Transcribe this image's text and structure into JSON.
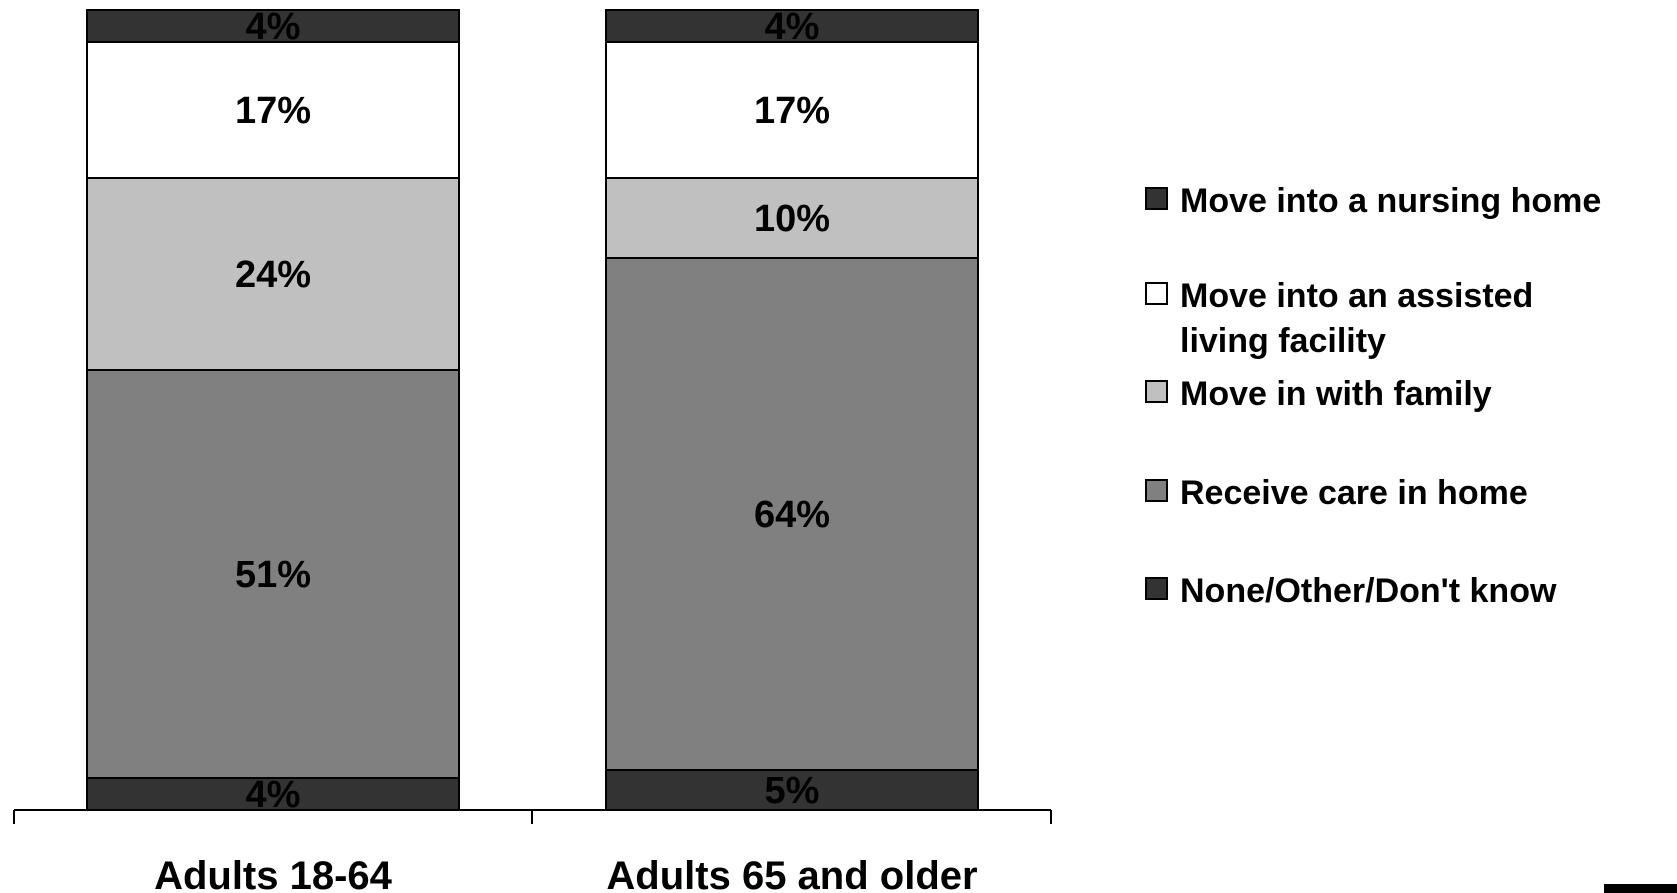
{
  "chart_data": {
    "type": "bar",
    "stacked": true,
    "orientation": "vertical",
    "scale": "percent",
    "ylim": [
      0,
      100
    ],
    "grid": false,
    "legend_position": "right",
    "categories": [
      "Adults 18-64",
      "Adults 65 and older"
    ],
    "series": [
      {
        "name": "None/Other/Don't know",
        "color": "#333333",
        "values": [
          4,
          5
        ],
        "labels": [
          "4%",
          "5%"
        ]
      },
      {
        "name": "Receive care in home",
        "color": "#808080",
        "values": [
          51,
          64
        ],
        "labels": [
          "51%",
          "64%"
        ]
      },
      {
        "name": "Move in with family",
        "color": "#c0c0c0",
        "values": [
          24,
          10
        ],
        "labels": [
          "24%",
          "10%"
        ]
      },
      {
        "name": "Move into an assisted living facility",
        "color": "#ffffff",
        "values": [
          17,
          17
        ],
        "labels": [
          "17%",
          "17%"
        ]
      },
      {
        "name": "Move into a nursing home",
        "color": "#333333",
        "values": [
          4,
          4
        ],
        "labels": [
          "4%",
          "4%"
        ]
      }
    ],
    "legend": [
      {
        "lines": [
          "Move into a nursing home"
        ],
        "color": "#333333"
      },
      {
        "lines": [
          "Move into an assisted",
          "living facility"
        ],
        "color": "#ffffff"
      },
      {
        "lines": [
          "Move in with family"
        ],
        "color": "#c0c0c0"
      },
      {
        "lines": [
          "Receive care in home"
        ],
        "color": "#808080"
      },
      {
        "lines": [
          "None/Other/Don't know"
        ],
        "color": "#333333"
      }
    ]
  }
}
